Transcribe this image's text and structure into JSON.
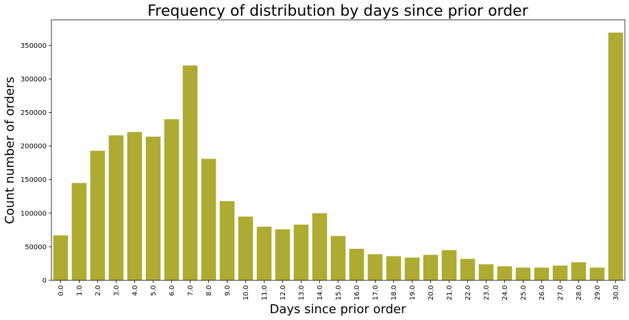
{
  "chart_data": {
    "type": "bar",
    "title": "Frequency of distribution by days since prior order",
    "xlabel": "Days since prior order",
    "ylabel": "Count number of orders",
    "categories": [
      "0.0",
      "1.0",
      "2.0",
      "3.0",
      "4.0",
      "5.0",
      "6.0",
      "7.0",
      "8.0",
      "9.0",
      "10.0",
      "11.0",
      "12.0",
      "13.0",
      "14.0",
      "15.0",
      "16.0",
      "17.0",
      "18.0",
      "19.0",
      "20.0",
      "21.0",
      "22.0",
      "23.0",
      "24.0",
      "25.0",
      "26.0",
      "27.0",
      "28.0",
      "29.0",
      "30.0"
    ],
    "values": [
      67000,
      145000,
      193000,
      216000,
      221000,
      214000,
      240000,
      320000,
      181000,
      118000,
      95000,
      80000,
      76000,
      83000,
      100000,
      66000,
      47000,
      39000,
      36000,
      34000,
      38000,
      45000,
      32000,
      24000,
      21000,
      19000,
      19000,
      22000,
      27000,
      19000,
      369000
    ],
    "ylim": [
      0,
      388000
    ],
    "yticks": [
      0,
      50000,
      100000,
      150000,
      200000,
      250000,
      300000,
      350000
    ],
    "bar_color": "#aeab32",
    "grid": false,
    "legend": "none"
  }
}
